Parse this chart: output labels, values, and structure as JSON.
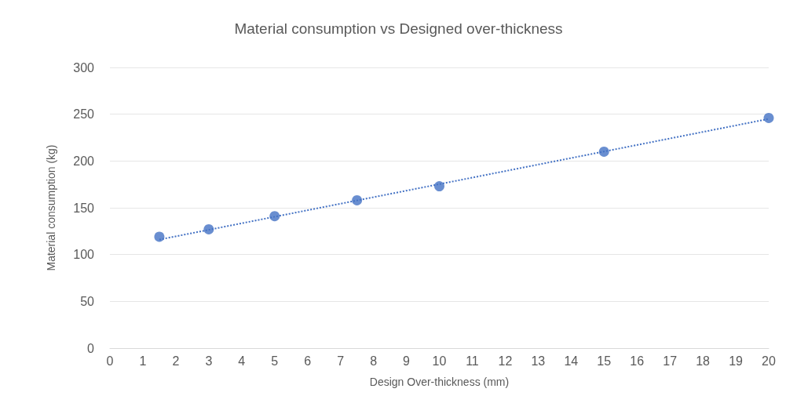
{
  "chart_data": {
    "type": "scatter",
    "title": "Material consumption vs Designed over-thickness",
    "xlabel": "Design Over-thickness (mm)",
    "ylabel": "Material consumption (kg)",
    "xlim": [
      0,
      20
    ],
    "xticks": [
      0,
      1,
      2,
      3,
      4,
      5,
      6,
      7,
      8,
      9,
      10,
      11,
      12,
      13,
      14,
      15,
      16,
      17,
      18,
      19,
      20
    ],
    "ylim": [
      0,
      300
    ],
    "yticks": [
      0,
      50,
      100,
      150,
      200,
      250,
      300
    ],
    "grid": "y",
    "marker": "circle",
    "series": [
      {
        "type": "scatter",
        "color": "#4472c4",
        "x": [
          1.5,
          3,
          5,
          7.5,
          10,
          15,
          20
        ],
        "values": [
          119,
          127,
          141,
          158,
          173,
          210,
          246
        ]
      },
      {
        "type": "line",
        "color": "#4472c4",
        "line_style": "dotted",
        "marker": "none",
        "x": [
          1.5,
          20
        ],
        "values": [
          116,
          245
        ]
      }
    ]
  }
}
